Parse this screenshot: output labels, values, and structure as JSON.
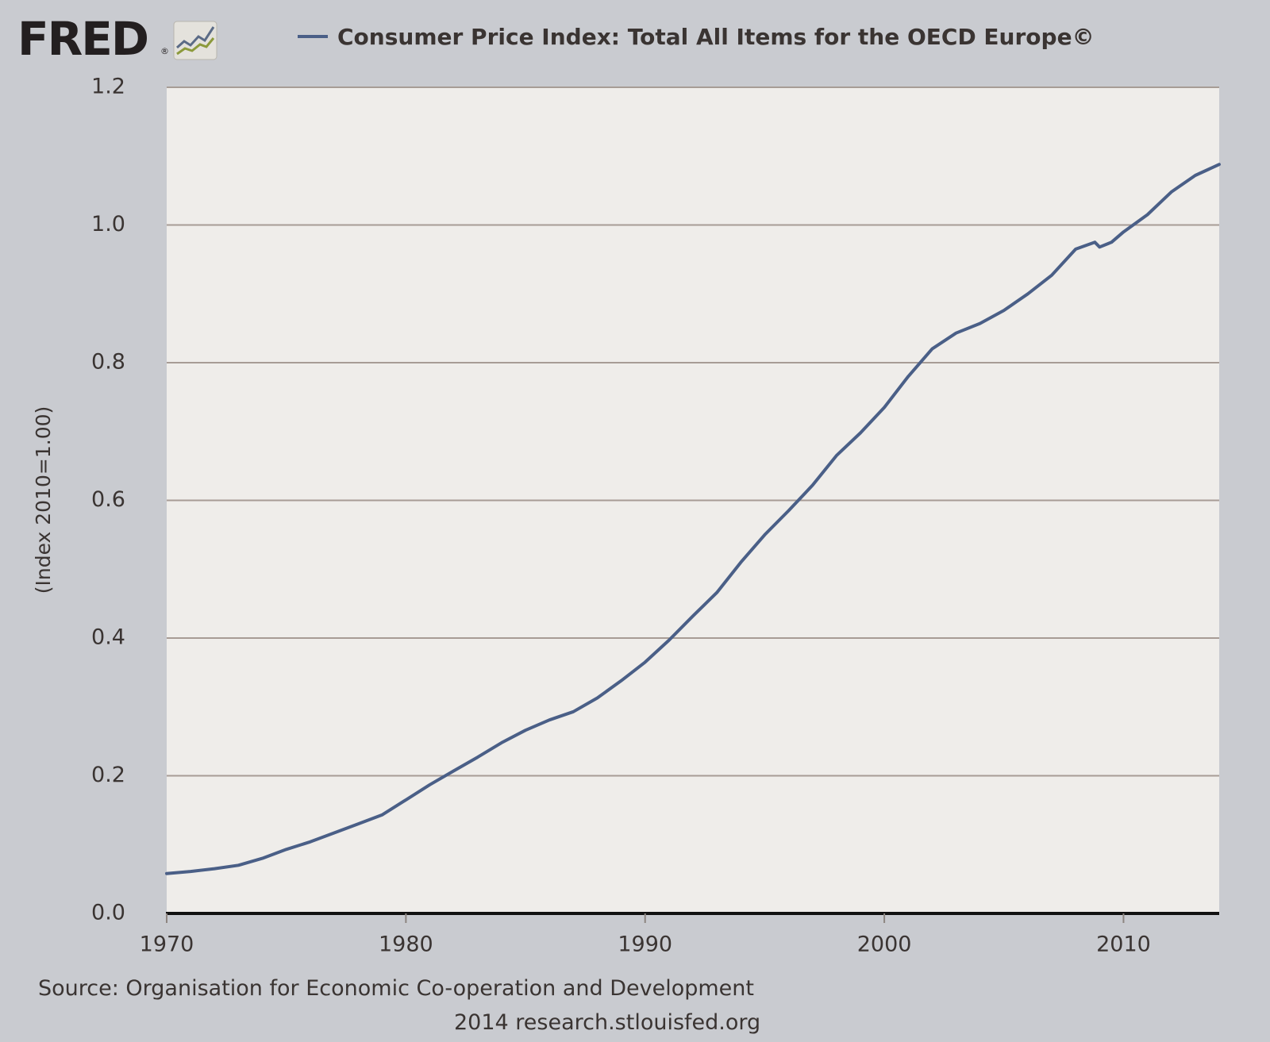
{
  "branding": {
    "logo_text": "FRED"
  },
  "chart_data": {
    "type": "line",
    "title": "Consumer Price Index: Total All Items for the OECD Europe©",
    "ylabel": "(Index 2010=1.00)",
    "xlabel": "",
    "xlim": [
      1970,
      2014
    ],
    "ylim": [
      0,
      1.2
    ],
    "grid": true,
    "legend_position": "top",
    "xticks": [
      "1970",
      "1980",
      "1990",
      "2000",
      "2010"
    ],
    "yticks": [
      "0.0",
      "0.2",
      "0.4",
      "0.6",
      "0.8",
      "1.0",
      "1.2"
    ],
    "series": [
      {
        "name": "Consumer Price Index: Total All Items for the OECD Europe©",
        "color": "#4a5f87",
        "x": [
          1970,
          1971,
          1972,
          1973,
          1974,
          1975,
          1976,
          1977,
          1978,
          1979,
          1980,
          1981,
          1982,
          1983,
          1984,
          1985,
          1986,
          1987,
          1988,
          1989,
          1990,
          1991,
          1992,
          1993,
          1994,
          1995,
          1996,
          1997,
          1998,
          1999,
          2000,
          2001,
          2002,
          2003,
          2004,
          2005,
          2006,
          2007,
          2008,
          2008.8,
          2009,
          2009.5,
          2010,
          2011,
          2012,
          2013,
          2014
        ],
        "y": [
          0.058,
          0.061,
          0.065,
          0.07,
          0.08,
          0.093,
          0.104,
          0.117,
          0.13,
          0.143,
          0.165,
          0.187,
          0.207,
          0.227,
          0.248,
          0.266,
          0.281,
          0.293,
          0.313,
          0.338,
          0.365,
          0.397,
          0.432,
          0.466,
          0.51,
          0.55,
          0.585,
          0.622,
          0.665,
          0.698,
          0.735,
          0.78,
          0.82,
          0.843,
          0.857,
          0.876,
          0.9,
          0.927,
          0.965,
          0.975,
          0.968,
          0.975,
          0.99,
          1.015,
          1.048,
          1.072,
          1.088
        ]
      }
    ]
  },
  "source_text": "Source: Organisation for Economic Co-operation and Development",
  "credit_text": "2014 research.stlouisfed.org"
}
